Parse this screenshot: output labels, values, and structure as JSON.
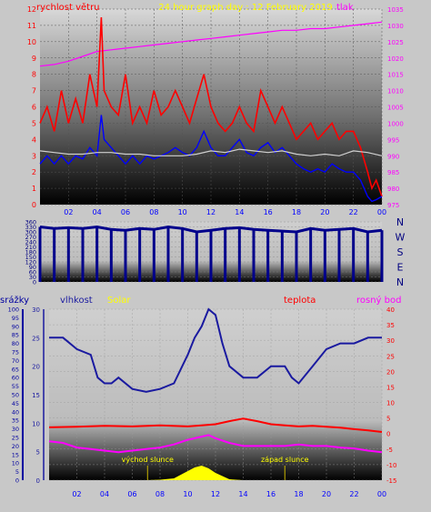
{
  "chart_data": [
    {
      "type": "line",
      "title": "24 hour graph day : 12 February 2019",
      "left_axis_label": "rychlost větru",
      "right_axis_label": "tlak",
      "y_left": {
        "min": 0,
        "max": 12,
        "ticks": [
          0,
          1,
          2,
          3,
          4,
          5,
          6,
          7,
          8,
          9,
          10,
          11,
          12
        ]
      },
      "y_right": {
        "min": 975,
        "max": 1035,
        "ticks": [
          975,
          980,
          985,
          990,
          995,
          1000,
          1005,
          1010,
          1015,
          1020,
          1025,
          1030,
          1035
        ]
      },
      "x_tick_labels": [
        "02",
        "04",
        "06",
        "08",
        "10",
        "12",
        "14",
        "16",
        "18",
        "20",
        "22",
        "00"
      ],
      "x_hours": [
        2,
        4,
        6,
        8,
        10,
        12,
        14,
        16,
        18,
        20,
        22,
        24
      ],
      "series": [
        {
          "key": "pressure",
          "axis": "right",
          "color": "#ff00ff",
          "x": [
            0,
            1,
            2,
            3,
            4,
            5,
            6,
            7,
            8,
            9,
            10,
            11,
            12,
            13,
            14,
            15,
            16,
            17,
            18,
            19,
            20,
            21,
            22,
            23,
            24
          ],
          "y": [
            1017.5,
            1018,
            1019,
            1020.5,
            1022,
            1022.5,
            1023,
            1023.5,
            1024,
            1024.5,
            1025,
            1025.5,
            1026,
            1026.5,
            1027,
            1027.5,
            1028,
            1028.5,
            1028.5,
            1029,
            1029,
            1029.5,
            1030,
            1030.5,
            1031
          ]
        },
        {
          "key": "gust",
          "axis": "left",
          "color": "#ff0000",
          "x": [
            0,
            0.5,
            1,
            1.5,
            2,
            2.5,
            3,
            3.5,
            4,
            4.3,
            4.5,
            5,
            5.5,
            6,
            6.5,
            7,
            7.5,
            8,
            8.5,
            9,
            9.5,
            10,
            10.5,
            11,
            11.5,
            12,
            12.5,
            13,
            13.5,
            14,
            14.5,
            15,
            15.5,
            16,
            16.5,
            17,
            17.5,
            18,
            18.5,
            19,
            19.5,
            20,
            20.5,
            21,
            21.5,
            22,
            22.5,
            23,
            23.3,
            23.6,
            24
          ],
          "y": [
            5,
            6,
            4.5,
            7,
            5,
            6.5,
            5,
            8,
            6,
            11.5,
            7,
            6,
            5.5,
            8,
            5,
            6,
            5,
            7,
            5.5,
            6,
            7,
            6,
            5,
            6.5,
            8,
            6,
            5,
            4.5,
            5,
            6,
            5,
            4.5,
            7,
            6,
            5,
            6,
            5,
            4,
            4.5,
            5,
            4,
            4.5,
            5,
            4,
            4.5,
            4.5,
            3.5,
            2,
            1,
            1.5,
            0.5
          ]
        },
        {
          "key": "wind",
          "axis": "left",
          "color": "#0000ff",
          "x": [
            0,
            0.5,
            1,
            1.5,
            2,
            2.5,
            3,
            3.5,
            4,
            4.3,
            4.5,
            5,
            5.5,
            6,
            6.5,
            7,
            7.5,
            8,
            8.5,
            9,
            9.5,
            10,
            10.5,
            11,
            11.5,
            12,
            12.5,
            13,
            13.5,
            14,
            14.5,
            15,
            15.5,
            16,
            16.5,
            17,
            17.5,
            18,
            18.5,
            19,
            19.5,
            20,
            20.5,
            21,
            21.5,
            22,
            22.5,
            23,
            23.3,
            23.6,
            24
          ],
          "y": [
            2.5,
            3,
            2.5,
            3,
            2.5,
            3,
            2.8,
            3.5,
            3,
            5.5,
            4,
            3.5,
            3,
            2.5,
            3,
            2.5,
            3,
            2.8,
            3,
            3.2,
            3.5,
            3.2,
            3,
            3.5,
            4.5,
            3.5,
            3,
            3,
            3.5,
            4,
            3.2,
            3,
            3.5,
            3.8,
            3.2,
            3.5,
            3,
            2.5,
            2.2,
            2,
            2.2,
            2,
            2.5,
            2.2,
            2,
            2,
            1.5,
            0.5,
            0.2,
            0.3,
            0.5
          ]
        },
        {
          "key": "avg_wind",
          "axis": "left",
          "color": "#d0d0d0",
          "x": [
            0,
            1,
            2,
            3,
            4,
            5,
            6,
            7,
            8,
            9,
            10,
            11,
            12,
            13,
            14,
            15,
            16,
            17,
            18,
            19,
            20,
            21,
            22,
            23,
            24
          ],
          "y": [
            3.3,
            3.2,
            3.1,
            3.1,
            3.2,
            3.2,
            3.1,
            3.1,
            3,
            3,
            3,
            3.1,
            3.3,
            3.2,
            3.4,
            3.3,
            3.2,
            3.3,
            3.1,
            3,
            3.1,
            3,
            3.3,
            3.2,
            3
          ]
        }
      ]
    },
    {
      "type": "scatter",
      "title": "",
      "y_left": {
        "min": 0,
        "max": 360,
        "ticks": [
          0,
          30,
          60,
          90,
          120,
          150,
          180,
          210,
          240,
          270,
          300,
          330,
          360
        ],
        "tick_labels": [
          "0",
          "30",
          "60",
          "90",
          "120",
          "150",
          "180",
          "210",
          "240",
          "270",
          "300",
          "330",
          "360"
        ]
      },
      "compass_labels": [
        "N",
        "W",
        "S",
        "E",
        "N"
      ],
      "compass_values": [
        360,
        270,
        180,
        90,
        0
      ],
      "series": [
        {
          "key": "direction",
          "color": "#00008b",
          "x": [
            0,
            1,
            2,
            3,
            4,
            5,
            6,
            7,
            8,
            9,
            10,
            11,
            12,
            13,
            14,
            15,
            16,
            17,
            18,
            19,
            20,
            21,
            22,
            23,
            24
          ],
          "y": [
            330,
            320,
            325,
            320,
            330,
            315,
            310,
            320,
            315,
            330,
            320,
            300,
            310,
            320,
            325,
            315,
            310,
            305,
            300,
            320,
            310,
            315,
            320,
            300,
            310
          ]
        }
      ]
    },
    {
      "type": "line",
      "title": "",
      "header_labels": [
        "srážky",
        "vlhkost",
        "Solar",
        "teplota",
        "rosný bod"
      ],
      "y_rain": {
        "min": 0,
        "max": 100,
        "ticks": [
          0,
          5,
          10,
          15,
          20,
          25,
          30,
          35,
          40,
          45,
          50,
          55,
          60,
          65,
          70,
          75,
          80,
          85,
          90,
          95,
          100
        ]
      },
      "y_humidity": {
        "min": 0,
        "max": 30,
        "ticks": [
          0,
          5,
          10,
          15,
          20,
          25,
          30
        ]
      },
      "y_temp": {
        "min": -15,
        "max": 40,
        "ticks": [
          -15,
          -10,
          -5,
          0,
          5,
          10,
          15,
          20,
          25,
          30,
          35,
          40
        ]
      },
      "annotations": [
        {
          "text": "východ slunce",
          "x": 7.1
        },
        {
          "text": "západ slunce",
          "x": 17.0
        }
      ],
      "series": [
        {
          "key": "humidity",
          "axis": "right",
          "color": "#1a1aa0",
          "x": [
            0,
            1,
            2,
            3,
            3.5,
            4,
            4.5,
            5,
            6,
            7,
            8,
            9,
            10,
            10.5,
            11,
            11.5,
            12,
            12.5,
            13,
            14,
            15,
            16,
            16.5,
            17,
            17.5,
            18,
            19,
            20,
            21,
            22,
            23,
            24
          ],
          "y": [
            25,
            25,
            23,
            22,
            18,
            17,
            17,
            18,
            16,
            15.5,
            16,
            17,
            22,
            25,
            27,
            30,
            29,
            24,
            20,
            18,
            18,
            20,
            20,
            20,
            18,
            17,
            20,
            23,
            24,
            24,
            25,
            25
          ]
        },
        {
          "key": "temperature",
          "axis": "right",
          "color": "#ff0000",
          "x": [
            0,
            2,
            4,
            6,
            8,
            10,
            11,
            12,
            13,
            14,
            15,
            16,
            17,
            18,
            19,
            20,
            21,
            22,
            23,
            24
          ],
          "y": [
            2.0,
            2.2,
            2.5,
            2.3,
            2.6,
            2.3,
            2.6,
            3.0,
            4.0,
            4.8,
            4.0,
            3.0,
            2.6,
            2.3,
            2.5,
            2.2,
            1.9,
            1.4,
            1.0,
            0.5
          ]
        },
        {
          "key": "dewpoint",
          "axis": "right",
          "color": "#ff00ff",
          "x": [
            0,
            1,
            2,
            3,
            4,
            5,
            6,
            7,
            8,
            9,
            10,
            10.5,
            11,
            11.5,
            12,
            13,
            14,
            15,
            16,
            17,
            18,
            19,
            20,
            21,
            22,
            23,
            24
          ],
          "y": [
            -2.5,
            -3,
            -4.5,
            -5,
            -5.5,
            -6,
            -5.5,
            -5,
            -4.5,
            -3.5,
            -2,
            -1.5,
            -1,
            -0.5,
            -1.5,
            -3,
            -4,
            -4,
            -4,
            -4,
            -3.5,
            -4,
            -4,
            -4.5,
            -4.8,
            -5.5,
            -6
          ]
        },
        {
          "key": "solar",
          "axis": "solar",
          "color": "#ffff00",
          "x": [
            7,
            8,
            9,
            9.5,
            10,
            10.5,
            11,
            11.5,
            12,
            13,
            14,
            15,
            16,
            17
          ],
          "y": [
            0,
            0.5,
            2,
            6,
            10,
            14,
            16,
            13,
            8,
            1,
            0,
            0,
            0,
            0
          ]
        }
      ]
    }
  ]
}
